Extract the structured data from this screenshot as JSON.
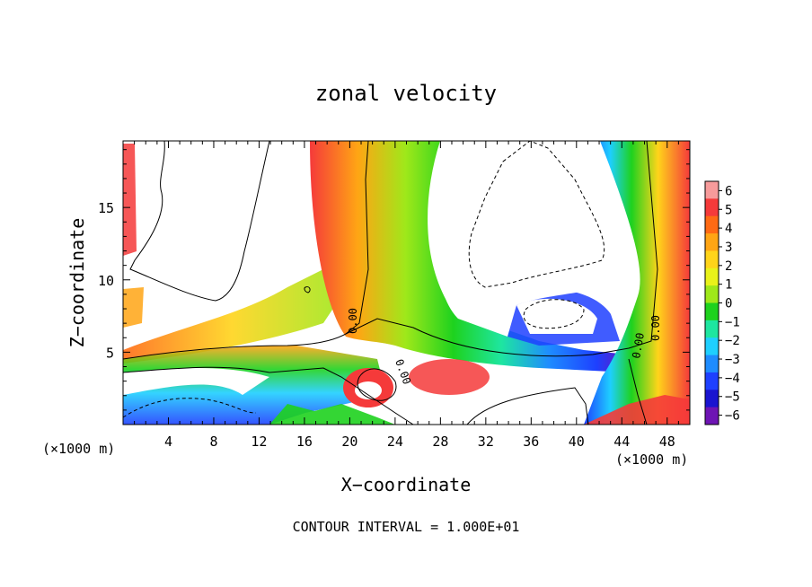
{
  "chart_data": {
    "type": "heatmap",
    "title": "zonal velocity",
    "xlabel": "X−coordinate",
    "ylabel": "Z−coordinate",
    "x_unit_label": "(×1000 m)",
    "y_unit_label": "(×1000 m)",
    "xlim": [
      0,
      50
    ],
    "ylim": [
      0,
      19.6
    ],
    "x_ticks": [
      4,
      8,
      12,
      16,
      20,
      24,
      28,
      32,
      36,
      40,
      44,
      48
    ],
    "y_ticks": [
      5,
      10,
      15
    ],
    "colorbar": {
      "ticks": [
        6,
        5,
        4,
        3,
        2,
        1,
        0,
        -1,
        -2,
        -3,
        -4,
        -5,
        -6
      ],
      "colors": [
        "#f79b9b",
        "#f53a3a",
        "#ff6a14",
        "#ffa514",
        "#ffd41a",
        "#e9f21a",
        "#9fe81a",
        "#1ed21e",
        "#1ee6a0",
        "#1ecfff",
        "#1e8cff",
        "#1e40ff",
        "#1a14d0",
        "#6e14b4"
      ]
    },
    "contour_labels": [
      "0.00",
      "0.00",
      "0.00",
      "0.00"
    ],
    "note": "CONTOUR INTERVAL = 1.000E+01"
  }
}
